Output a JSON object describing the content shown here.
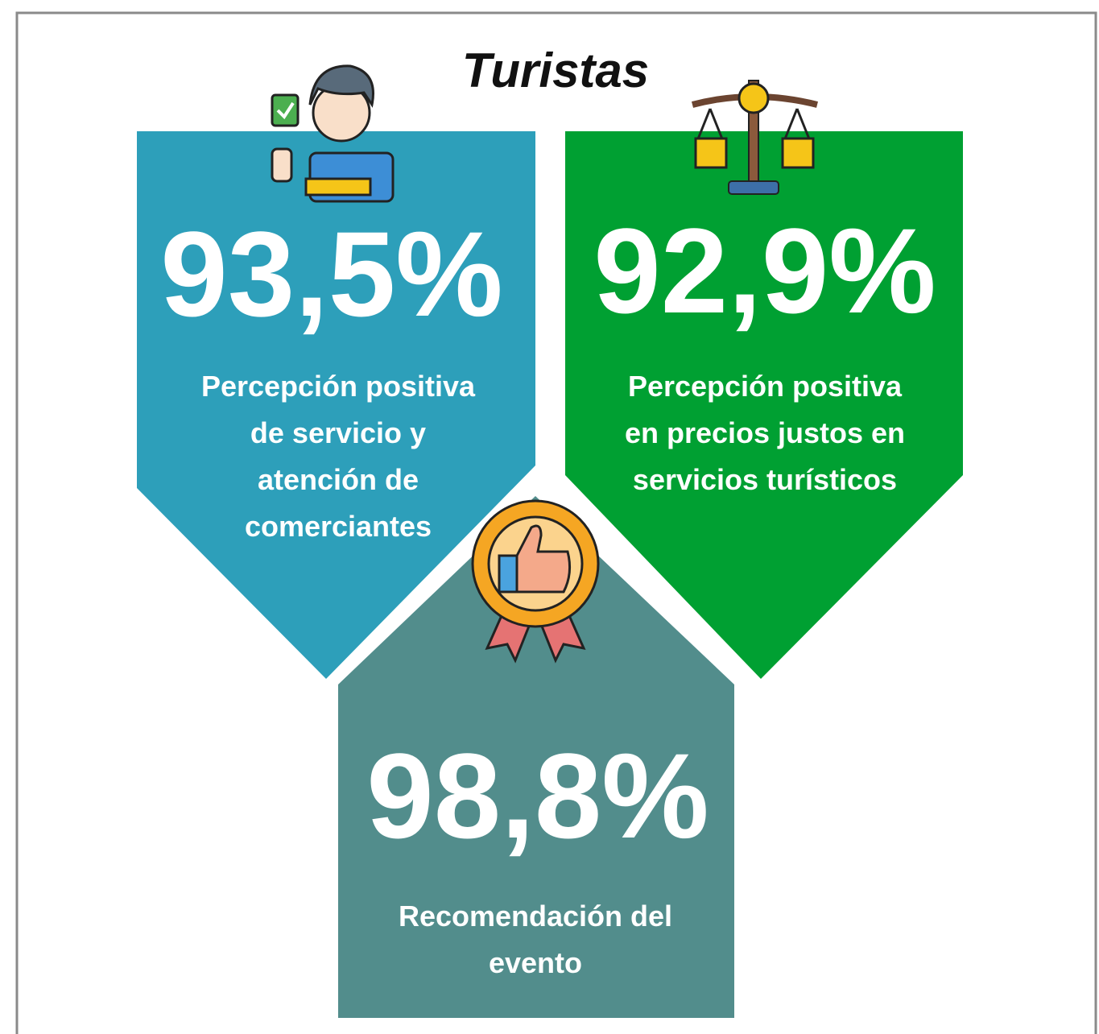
{
  "title": "Turistas",
  "cards": [
    {
      "value": "93,5%",
      "label_lines": [
        "Percepción positiva",
        "de servicio y",
        "atención de",
        "comerciantes"
      ]
    },
    {
      "value": "92,9%",
      "label_lines": [
        "Percepción positiva",
        "en precios justos en",
        "servicios turísticos"
      ]
    },
    {
      "value": "98,8%",
      "label_lines": [
        "Recomendación del",
        "evento"
      ]
    }
  ]
}
